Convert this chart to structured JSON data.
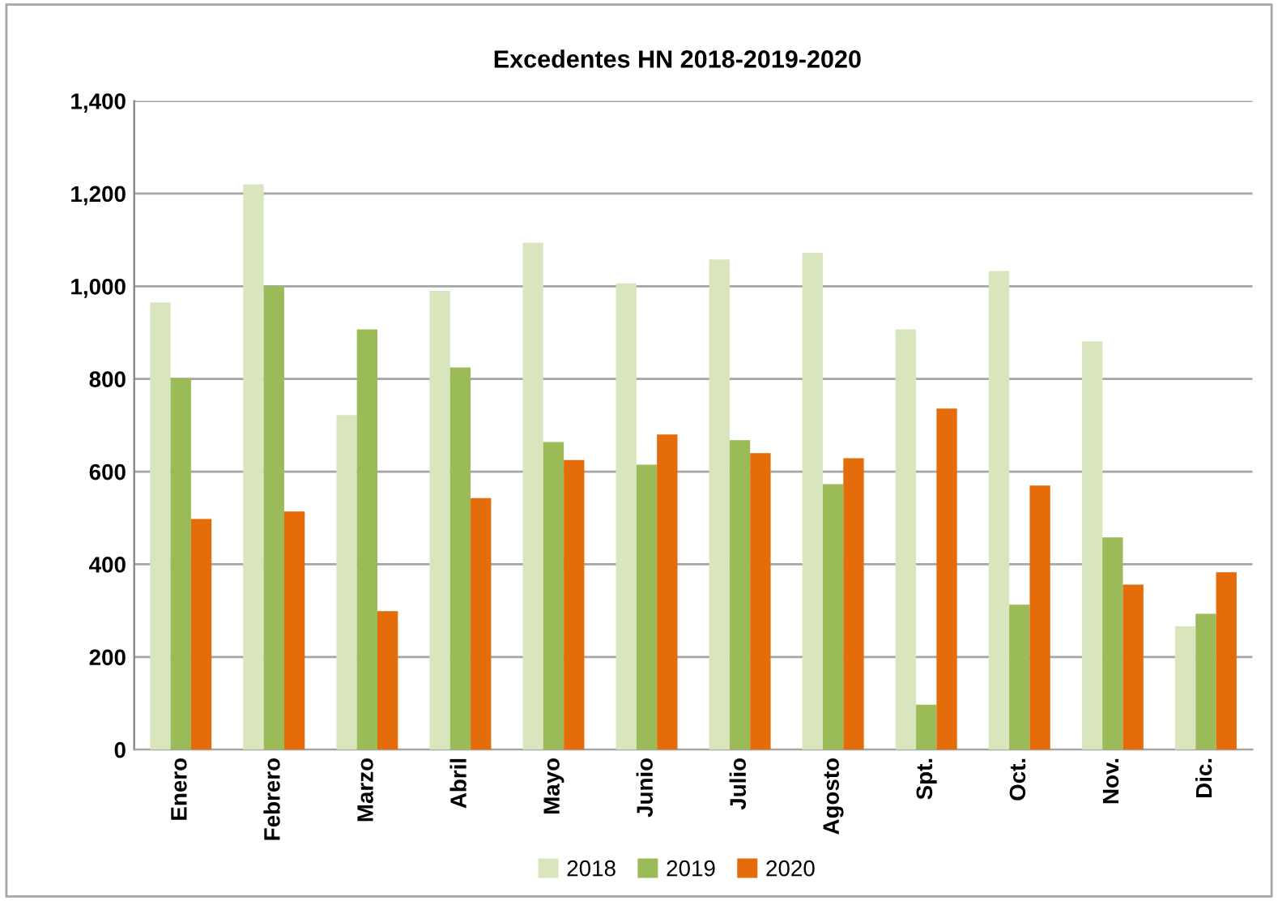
{
  "chart_data": {
    "type": "bar",
    "title": "Excedentes HN 2018-2019-2020",
    "categories": [
      "Enero",
      "Febrero",
      "Marzo",
      "Abril",
      "Mayo",
      "Junio",
      "Julio",
      "Agosto",
      "Spt.",
      "Oct.",
      "Nov.",
      "Dic."
    ],
    "series": [
      {
        "name": "2018",
        "color": "#d9e5bd",
        "values": [
          965,
          1220,
          722,
          990,
          1094,
          1006,
          1058,
          1072,
          907,
          1033,
          881,
          266
        ]
      },
      {
        "name": "2019",
        "color": "#9bbb59",
        "values": [
          802,
          1000,
          907,
          825,
          664,
          615,
          668,
          573,
          97,
          313,
          458,
          293
        ]
      },
      {
        "name": "2020",
        "color": "#e46c0a",
        "values": [
          498,
          514,
          299,
          543,
          625,
          680,
          640,
          629,
          736,
          570,
          356,
          383
        ]
      }
    ],
    "ylim": [
      0,
      1400
    ],
    "yticks": [
      {
        "value": 0,
        "label": "0"
      },
      {
        "value": 200,
        "label": "200"
      },
      {
        "value": 400,
        "label": "400"
      },
      {
        "value": 600,
        "label": "600"
      },
      {
        "value": 800,
        "label": "800"
      },
      {
        "value": 1000,
        "label": "1,000"
      },
      {
        "value": 1200,
        "label": "1,200"
      },
      {
        "value": 1400,
        "label": "1,400"
      }
    ],
    "grid": "y",
    "legend": "bottom"
  }
}
